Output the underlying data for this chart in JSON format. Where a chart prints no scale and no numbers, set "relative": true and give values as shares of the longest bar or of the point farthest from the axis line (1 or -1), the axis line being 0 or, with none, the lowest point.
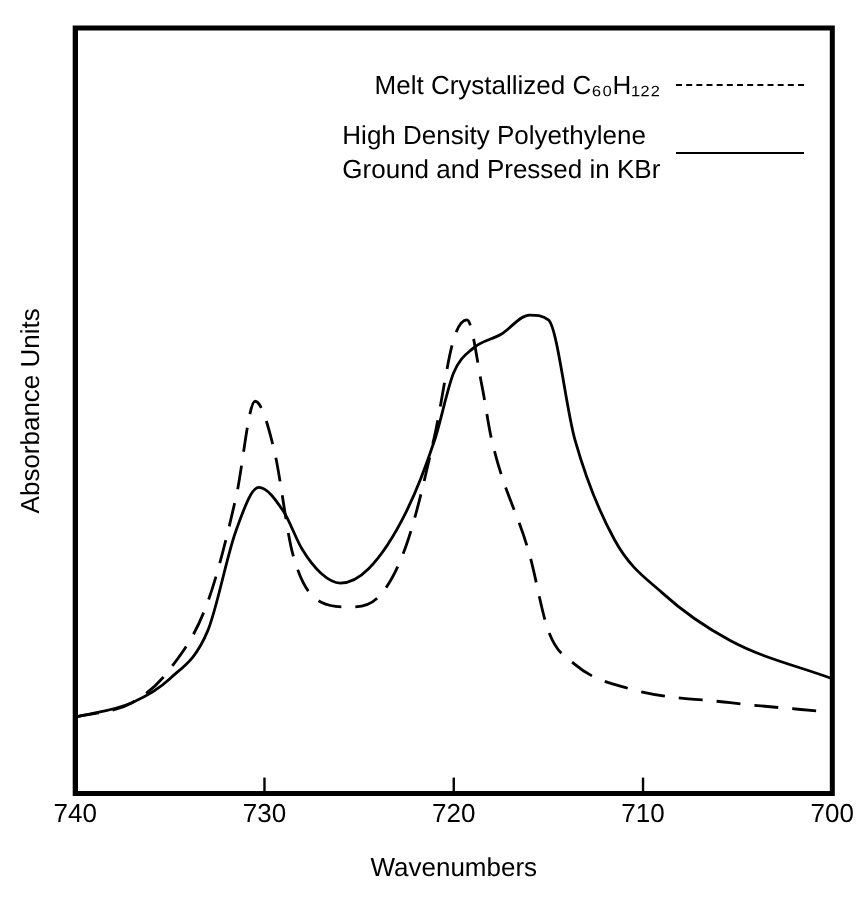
{
  "chart_data": {
    "type": "line",
    "relative": true,
    "xlabel": "Wavenumbers",
    "ylabel": "Absorbance Units",
    "xlim": [
      740,
      700
    ],
    "xticks": [
      740,
      730,
      720,
      710,
      700
    ],
    "grid": false,
    "legend": "top right",
    "marker": "none",
    "tick_labels": "x",
    "series": [
      {
        "name": "Melt Crystallized C₆₀H₁₂₂",
        "color": "#000000",
        "line_style": "dashed",
        "x": [
          740,
          737,
          735,
          733,
          731.5,
          730.5,
          729.5,
          728.5,
          727,
          725.5,
          724,
          722.5,
          721,
          720,
          719.3,
          718.5,
          718,
          716,
          715,
          713.6,
          710.8,
          705.4,
          700
        ],
        "values": [
          0.16,
          0.19,
          0.26,
          0.4,
          0.62,
          0.82,
          0.72,
          0.5,
          0.4,
          0.39,
          0.41,
          0.52,
          0.75,
          0.95,
          0.99,
          0.85,
          0.74,
          0.5,
          0.34,
          0.27,
          0.22,
          0.19,
          0.17
        ]
      },
      {
        "name": "High Density Polyethylene Ground and Pressed in KBr",
        "color": "#000000",
        "line_style": "solid",
        "x": [
          740,
          737,
          735,
          733,
          731.5,
          730.3,
          729,
          728,
          727,
          726,
          724.5,
          722.5,
          721,
          720,
          719,
          717.5,
          716,
          715,
          713.6,
          711.5,
          709,
          705.4,
          700
        ],
        "values": [
          0.16,
          0.19,
          0.24,
          0.34,
          0.55,
          0.64,
          0.59,
          0.51,
          0.46,
          0.44,
          0.47,
          0.59,
          0.74,
          0.88,
          0.93,
          0.96,
          1.0,
          0.99,
          0.74,
          0.53,
          0.42,
          0.32,
          0.24
        ]
      }
    ]
  }
}
